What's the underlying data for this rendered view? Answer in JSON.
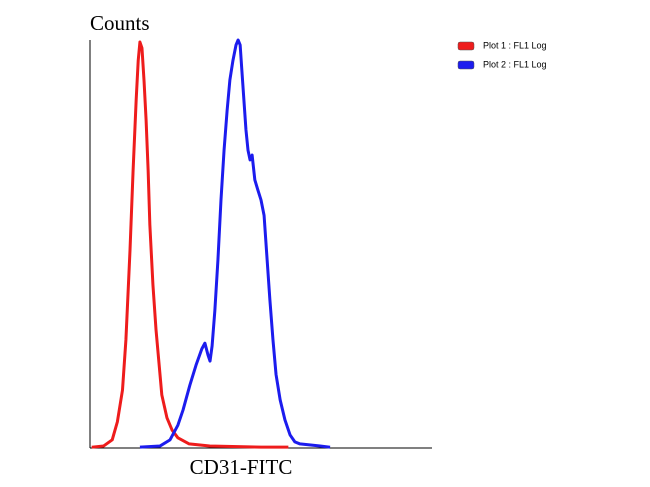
{
  "chart_data": {
    "type": "line",
    "title": "Counts",
    "x_label": "CD31-FITC",
    "xlim": [
      0,
      100
    ],
    "ylim": [
      0,
      100
    ],
    "legend": "top-right",
    "series": [
      {
        "name": "Plot 1 : FL1 Log",
        "color": "#ee1c1c",
        "x": [
          0.5,
          4,
          6.5,
          8,
          9.5,
          10.5,
          11.7,
          12.6,
          13.5,
          14.1,
          14.6,
          15.2,
          15.8,
          16.4,
          17,
          17.5,
          18.4,
          19.3,
          21,
          22.5,
          24,
          25.7,
          29,
          35,
          50,
          58
        ],
        "values": [
          0.2,
          0.5,
          2,
          6.4,
          14.2,
          26.5,
          48.5,
          68,
          85.3,
          95,
          99.5,
          98,
          90,
          80.4,
          68,
          54.7,
          40,
          29,
          13,
          7.4,
          4.4,
          2.5,
          1,
          0.5,
          0.2,
          0.2
        ]
      },
      {
        "name": "Plot 2 : FL1 Log",
        "color": "#1c1cee",
        "x": [
          14.6,
          20.5,
          23.4,
          25.7,
          27.2,
          29.2,
          31,
          32.7,
          33.6,
          34.5,
          35.1,
          35.7,
          36.5,
          37.4,
          38.3,
          39.2,
          40.1,
          40.9,
          41.8,
          42.7,
          43.3,
          43.9,
          44.4,
          45,
          45.6,
          46.2,
          46.8,
          47.4,
          48.2,
          49.1,
          50,
          50.9,
          51.8,
          52.6,
          53.5,
          54.4,
          55.6,
          57,
          58.5,
          59.9,
          61.4,
          67.3,
          70.2
        ],
        "values": [
          0.2,
          0.5,
          2,
          5.6,
          9.3,
          15.4,
          20.3,
          24.3,
          25.7,
          22.8,
          21.3,
          25,
          33.6,
          46,
          60.8,
          73,
          82.8,
          90.2,
          95,
          98.8,
          100,
          98.8,
          92.6,
          85.3,
          78,
          73,
          70.6,
          71.8,
          65.7,
          63.2,
          60.8,
          57,
          46,
          36.3,
          26.5,
          18,
          11.8,
          6.9,
          3.2,
          1.5,
          1,
          0.5,
          0.2
        ]
      }
    ]
  }
}
